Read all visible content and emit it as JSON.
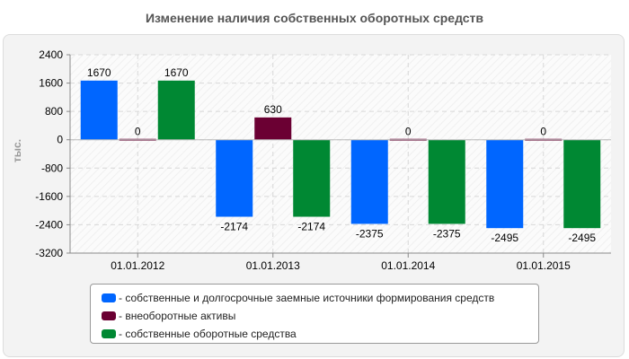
{
  "chart_data": {
    "type": "bar",
    "title": "Изменение наличия собственных оборотных средств",
    "ylabel": "тыс.",
    "xlabel": "",
    "categories": [
      "01.01.2012",
      "01.01.2013",
      "01.01.2014",
      "01.01.2015"
    ],
    "ylim": [
      -3200,
      2400
    ],
    "yticks": [
      2400,
      1600,
      800,
      0,
      -800,
      -1600,
      -2400,
      -3200
    ],
    "grid": true,
    "legend_position": "bottom",
    "series": [
      {
        "name": "собственные и долгосрочные заемные источники формирования средств",
        "color": "#0066ff",
        "values": [
          1670,
          -2174,
          -2375,
          -2495
        ],
        "labels": [
          "1670",
          "-2174",
          "-2375",
          "-2495"
        ]
      },
      {
        "name": "внеоборотные активы",
        "color": "#6b0033",
        "values": [
          0,
          630,
          0,
          0
        ],
        "labels": [
          "0",
          "630",
          "0",
          "0"
        ]
      },
      {
        "name": "собственные оборотные средства",
        "color": "#008833",
        "values": [
          1670,
          -2174,
          -2375,
          -2495
        ],
        "labels": [
          "1670",
          "-2174",
          "-2375",
          "-2495"
        ]
      }
    ]
  }
}
